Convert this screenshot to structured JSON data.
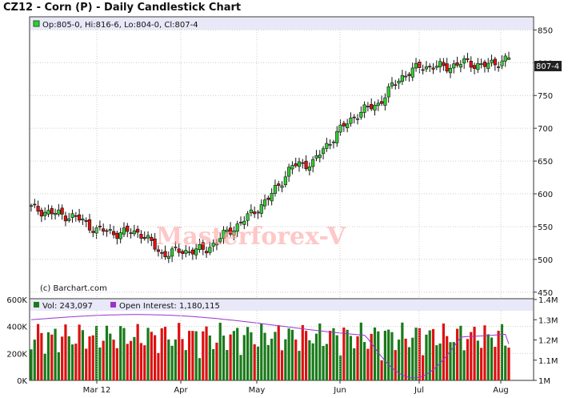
{
  "title": "CZ12 - Corn (P) - Daily Candlestick Chart",
  "ohlc_legend": "Op:805-0, Hi:816-6, Lo:804-0, Cl:807-4",
  "last_price_label": "807-4",
  "copyright": "(c) Barchart.com",
  "watermark": "Masterforex-V",
  "volume_legend": "Vol: 243,097",
  "oi_legend": "Open Interest: 1,180,115",
  "colors": {
    "up": "#33cc33",
    "down": "#dd1111",
    "vol_up": "#1a7a1a",
    "vol_down": "#dd1111",
    "oi": "#9933cc",
    "band": "#e8e8f8"
  },
  "chart_data": [
    {
      "type": "candlestick",
      "title": "CZ12 - Corn (P) - Daily Candlestick Chart",
      "x_labels": [
        "Mar 12",
        "Apr",
        "May",
        "Jun",
        "Jul",
        "Aug"
      ],
      "y_ticks": [
        "850",
        "800",
        "750",
        "700",
        "650",
        "600",
        "550",
        "500",
        "450"
      ],
      "ylim": [
        440,
        870
      ],
      "x": [
        "Feb 22",
        "Mar 1",
        "Mar 12",
        "Apr 2",
        "Apr 16",
        "May 1",
        "May 15",
        "Jun 1",
        "Jun 15",
        "Jun 20",
        "Jun 22",
        "Jun 26",
        "Jun 29",
        "Jul 3",
        "Jul 6",
        "Jul 10",
        "Jul 13",
        "Jul 17",
        "Jul 20",
        "Jul 24",
        "Jul 27",
        "Aug 1",
        "Aug 3"
      ],
      "close": [
        578,
        570,
        565,
        545,
        540,
        542,
        508,
        513,
        514,
        540,
        565,
        595,
        642,
        648,
        690,
        722,
        738,
        778,
        795,
        793,
        800,
        795,
        807.5
      ],
      "last": {
        "open": 805,
        "high": 816.75,
        "low": 804,
        "close": 807.5
      }
    },
    {
      "type": "bar",
      "title": "Volume / Open Interest",
      "y_ticks_left": [
        "600K",
        "400K",
        "200K",
        "0K"
      ],
      "y_ticks_right": [
        "1.4M",
        "1.3M",
        "1.2M",
        "1.1M",
        "1M"
      ],
      "volume_last": 243097,
      "open_interest_last": 1180115,
      "volume_range": [
        0,
        600000
      ],
      "oi_range": [
        1000000,
        1400000
      ]
    }
  ]
}
